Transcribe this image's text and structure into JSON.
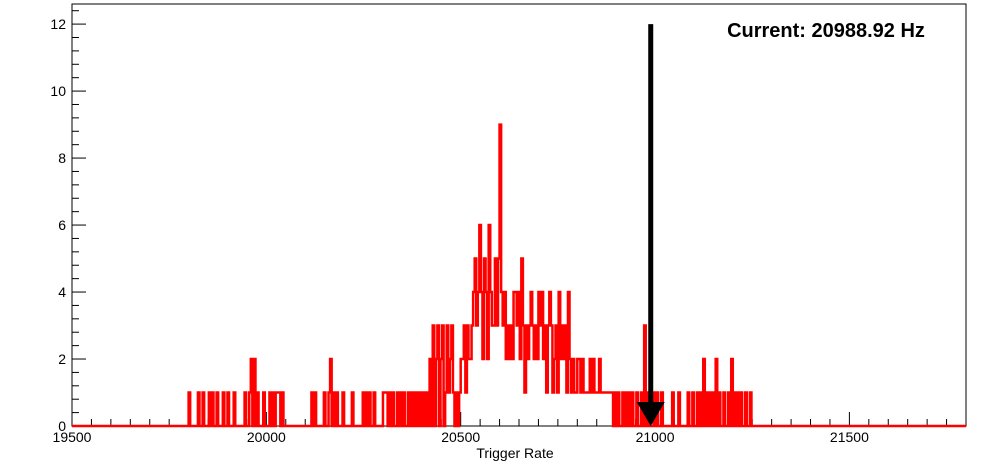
{
  "chart_data": {
    "type": "histogram",
    "title": "",
    "xlabel": "Trigger Rate",
    "ylabel": "",
    "xlim": [
      19500,
      21800
    ],
    "ylim": [
      0,
      12.6
    ],
    "bin_width": 4,
    "x_ticks": [
      19500,
      20000,
      20500,
      21000,
      21500
    ],
    "y_ticks": [
      0,
      2,
      4,
      6,
      8,
      10,
      12
    ],
    "line_color": "#ff0000",
    "grid": false,
    "annotation": {
      "text": "Current: 20988.92 Hz",
      "marker_x": 20988.92,
      "arrow_from_y": 12,
      "arrow_to_y": 0,
      "arrow_color": "#000000"
    },
    "bins": [
      [
        19800,
        1
      ],
      [
        19824,
        1
      ],
      [
        19836,
        1
      ],
      [
        19852,
        1
      ],
      [
        19860,
        1
      ],
      [
        19872,
        1
      ],
      [
        19888,
        1
      ],
      [
        19900,
        1
      ],
      [
        19916,
        1
      ],
      [
        19944,
        1
      ],
      [
        19956,
        1
      ],
      [
        19960,
        2
      ],
      [
        19968,
        2
      ],
      [
        19976,
        1
      ],
      [
        19992,
        1
      ],
      [
        20008,
        1
      ],
      [
        20016,
        1
      ],
      [
        20024,
        1
      ],
      [
        20028,
        1
      ],
      [
        20032,
        1
      ],
      [
        20040,
        1
      ],
      [
        20116,
        1
      ],
      [
        20124,
        1
      ],
      [
        20148,
        1
      ],
      [
        20160,
        1
      ],
      [
        20164,
        2
      ],
      [
        20172,
        1
      ],
      [
        20180,
        1
      ],
      [
        20196,
        1
      ],
      [
        20220,
        1
      ],
      [
        20248,
        1
      ],
      [
        20256,
        1
      ],
      [
        20264,
        1
      ],
      [
        20276,
        1
      ],
      [
        20300,
        1
      ],
      [
        20304,
        1
      ],
      [
        20308,
        1
      ],
      [
        20316,
        1
      ],
      [
        20324,
        1
      ],
      [
        20336,
        1
      ],
      [
        20344,
        1
      ],
      [
        20352,
        1
      ],
      [
        20364,
        1
      ],
      [
        20372,
        1
      ],
      [
        20380,
        1
      ],
      [
        20388,
        1
      ],
      [
        20396,
        1
      ],
      [
        20404,
        1
      ],
      [
        20412,
        1
      ],
      [
        20420,
        2
      ],
      [
        20428,
        3
      ],
      [
        20436,
        2
      ],
      [
        20440,
        3
      ],
      [
        20448,
        2
      ],
      [
        20452,
        3
      ],
      [
        20460,
        1
      ],
      [
        20464,
        3
      ],
      [
        20468,
        1
      ],
      [
        20472,
        2
      ],
      [
        20476,
        3
      ],
      [
        20480,
        1
      ],
      [
        20488,
        1
      ],
      [
        20496,
        1
      ],
      [
        20500,
        2
      ],
      [
        20504,
        2
      ],
      [
        20508,
        3
      ],
      [
        20512,
        1
      ],
      [
        20516,
        3
      ],
      [
        20520,
        2
      ],
      [
        20524,
        2
      ],
      [
        20528,
        3
      ],
      [
        20532,
        4
      ],
      [
        20536,
        5
      ],
      [
        20540,
        3
      ],
      [
        20544,
        4
      ],
      [
        20548,
        6
      ],
      [
        20552,
        4
      ],
      [
        20556,
        2
      ],
      [
        20560,
        5
      ],
      [
        20564,
        4
      ],
      [
        20568,
        2
      ],
      [
        20572,
        6
      ],
      [
        20576,
        4
      ],
      [
        20580,
        3
      ],
      [
        20584,
        3
      ],
      [
        20588,
        5
      ],
      [
        20592,
        3
      ],
      [
        20596,
        5
      ],
      [
        20600,
        9
      ],
      [
        20604,
        4
      ],
      [
        20608,
        3
      ],
      [
        20612,
        4
      ],
      [
        20616,
        2
      ],
      [
        20620,
        3
      ],
      [
        20624,
        2
      ],
      [
        20628,
        3
      ],
      [
        20632,
        2
      ],
      [
        20636,
        4
      ],
      [
        20640,
        4
      ],
      [
        20644,
        3
      ],
      [
        20648,
        4
      ],
      [
        20652,
        2
      ],
      [
        20656,
        5
      ],
      [
        20660,
        3
      ],
      [
        20664,
        1
      ],
      [
        20668,
        3
      ],
      [
        20672,
        2
      ],
      [
        20676,
        3
      ],
      [
        20680,
        4
      ],
      [
        20684,
        3
      ],
      [
        20688,
        2
      ],
      [
        20692,
        3
      ],
      [
        20696,
        2
      ],
      [
        20700,
        4
      ],
      [
        20704,
        3
      ],
      [
        20708,
        4
      ],
      [
        20712,
        2
      ],
      [
        20716,
        3
      ],
      [
        20720,
        1
      ],
      [
        20724,
        3
      ],
      [
        20728,
        4
      ],
      [
        20732,
        3
      ],
      [
        20736,
        1
      ],
      [
        20740,
        2
      ],
      [
        20744,
        3
      ],
      [
        20748,
        1
      ],
      [
        20752,
        4
      ],
      [
        20756,
        2
      ],
      [
        20760,
        3
      ],
      [
        20764,
        2
      ],
      [
        20768,
        3
      ],
      [
        20772,
        1
      ],
      [
        20776,
        4
      ],
      [
        20780,
        2
      ],
      [
        20784,
        1
      ],
      [
        20788,
        2
      ],
      [
        20792,
        1
      ],
      [
        20796,
        1
      ],
      [
        20800,
        2
      ],
      [
        20804,
        2
      ],
      [
        20808,
        1
      ],
      [
        20812,
        2
      ],
      [
        20816,
        1
      ],
      [
        20820,
        1
      ],
      [
        20824,
        1
      ],
      [
        20828,
        1
      ],
      [
        20832,
        2
      ],
      [
        20836,
        1
      ],
      [
        20840,
        2
      ],
      [
        20844,
        1
      ],
      [
        20848,
        1
      ],
      [
        20852,
        1
      ],
      [
        20856,
        2
      ],
      [
        20860,
        1
      ],
      [
        20864,
        1
      ],
      [
        20868,
        1
      ],
      [
        20872,
        1
      ],
      [
        20876,
        1
      ],
      [
        20880,
        1
      ],
      [
        20884,
        1
      ],
      [
        20888,
        1
      ],
      [
        20896,
        1
      ],
      [
        20904,
        1
      ],
      [
        20916,
        1
      ],
      [
        20924,
        1
      ],
      [
        20932,
        1
      ],
      [
        20940,
        1
      ],
      [
        20952,
        1
      ],
      [
        20964,
        1
      ],
      [
        20972,
        3
      ],
      [
        20980,
        1
      ],
      [
        20996,
        1
      ],
      [
        21004,
        1
      ],
      [
        21016,
        1
      ],
      [
        21044,
        1
      ],
      [
        21060,
        1
      ],
      [
        21084,
        1
      ],
      [
        21096,
        1
      ],
      [
        21108,
        1
      ],
      [
        21116,
        1
      ],
      [
        21124,
        2
      ],
      [
        21132,
        1
      ],
      [
        21140,
        1
      ],
      [
        21148,
        1
      ],
      [
        21156,
        2
      ],
      [
        21164,
        1
      ],
      [
        21176,
        1
      ],
      [
        21188,
        1
      ],
      [
        21196,
        2
      ],
      [
        21204,
        1
      ],
      [
        21212,
        1
      ],
      [
        21220,
        1
      ],
      [
        21232,
        1
      ],
      [
        21244,
        1
      ]
    ]
  }
}
